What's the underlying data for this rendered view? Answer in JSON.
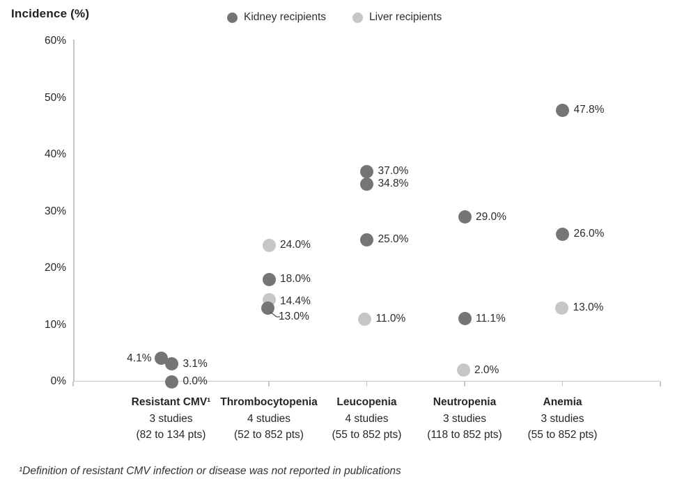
{
  "title": "Incidence (%)",
  "footnote": "¹Definition of resistant CMV infection or disease was not reported in publications",
  "colors": {
    "kidney": "#757575",
    "liver": "#c6c6c6",
    "axis": "#c6c6c6",
    "leader": "#4d4d4d"
  },
  "legend": {
    "items": [
      {
        "label": "Kidney recipients",
        "series": "kidney"
      },
      {
        "label": "Liver recipients",
        "series": "liver"
      }
    ]
  },
  "chart_data": {
    "type": "scatter",
    "title": "Incidence (%)",
    "ylabel": "Incidence (%)",
    "ylim": [
      0,
      60
    ],
    "ytick_values": [
      0,
      10,
      20,
      30,
      40,
      50,
      60
    ],
    "ytick_labels": [
      "0%",
      "10%",
      "20%",
      "30%",
      "40%",
      "50%",
      "60%"
    ],
    "grid": false,
    "legend_position": "top",
    "categories": [
      {
        "name": "Resistant CMV¹",
        "studies": "3 studies",
        "patients": "(82 to 134 pts)"
      },
      {
        "name": "Thrombocytopenia",
        "studies": "4 studies",
        "patients": "(52 to 852 pts)"
      },
      {
        "name": "Leucopenia",
        "studies": "4 studies",
        "patients": "(55 to 852 pts)"
      },
      {
        "name": "Neutropenia",
        "studies": "3 studies",
        "patients": "(118 to 852 pts)"
      },
      {
        "name": "Anemia",
        "studies": "3 studies",
        "patients": "(55 to 852 pts)"
      }
    ],
    "series": [
      {
        "name": "Kidney recipients",
        "key": "kidney",
        "values_by_category": [
          [
            4.1,
            3.1,
            0.0
          ],
          [
            18.0,
            13.0
          ],
          [
            37.0,
            34.8,
            25.0
          ],
          [
            29.0,
            11.1
          ],
          [
            47.8,
            26.0
          ]
        ]
      },
      {
        "name": "Liver recipients",
        "key": "liver",
        "values_by_category": [
          [],
          [
            24.0,
            14.4
          ],
          [
            11.0
          ],
          [
            2.0
          ],
          [
            13.0
          ]
        ]
      }
    ],
    "points": [
      {
        "cat": 0,
        "series": "kidney",
        "value": 4.1,
        "label": "4.1%",
        "side": "left",
        "dx": -14
      },
      {
        "cat": 0,
        "series": "kidney",
        "value": 3.1,
        "label": "3.1%",
        "side": "right",
        "dx": 1
      },
      {
        "cat": 0,
        "series": "kidney",
        "value": 0.0,
        "label": "0.0%",
        "side": "right",
        "dx": 1
      },
      {
        "cat": 1,
        "series": "liver",
        "value": 24.0,
        "label": "24.0%",
        "side": "right"
      },
      {
        "cat": 1,
        "series": "kidney",
        "value": 18.0,
        "label": "18.0%",
        "side": "right"
      },
      {
        "cat": 1,
        "series": "liver",
        "value": 14.4,
        "label": "14.4%",
        "side": "right",
        "label_dy": 2
      },
      {
        "cat": 1,
        "series": "kidney",
        "value": 13.0,
        "label": "13.0%",
        "side": "right",
        "dx": -2,
        "label_dy": 13,
        "leader": true
      },
      {
        "cat": 2,
        "series": "kidney",
        "value": 37.0,
        "label": "37.0%",
        "side": "right"
      },
      {
        "cat": 2,
        "series": "kidney",
        "value": 34.8,
        "label": "34.8%",
        "side": "right"
      },
      {
        "cat": 2,
        "series": "kidney",
        "value": 25.0,
        "label": "25.0%",
        "side": "right"
      },
      {
        "cat": 2,
        "series": "liver",
        "value": 11.0,
        "label": "11.0%",
        "side": "right",
        "dx": -3
      },
      {
        "cat": 3,
        "series": "kidney",
        "value": 29.0,
        "label": "29.0%",
        "side": "right"
      },
      {
        "cat": 3,
        "series": "kidney",
        "value": 11.1,
        "label": "11.1%",
        "side": "right"
      },
      {
        "cat": 3,
        "series": "liver",
        "value": 2.0,
        "label": "2.0%",
        "side": "right",
        "dx": -2
      },
      {
        "cat": 4,
        "series": "kidney",
        "value": 47.8,
        "label": "47.8%",
        "side": "right"
      },
      {
        "cat": 4,
        "series": "kidney",
        "value": 26.0,
        "label": "26.0%",
        "side": "right"
      },
      {
        "cat": 4,
        "series": "liver",
        "value": 13.0,
        "label": "13.0%",
        "side": "right",
        "dx": -1
      }
    ]
  }
}
